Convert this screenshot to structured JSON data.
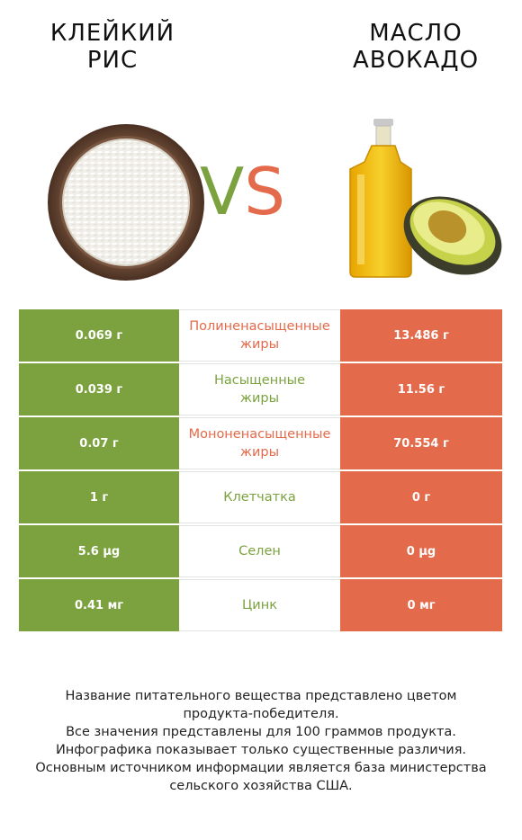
{
  "colors": {
    "green": "#7ba23f",
    "red": "#e36a4a"
  },
  "left_product": {
    "title_line1": "КЛЕЙКИЙ",
    "title_line2": "РИС",
    "image_icon": "rice-bowl-icon"
  },
  "right_product": {
    "title_line1": "МАСЛО",
    "title_line2": "АВОКАДО",
    "image_icon": "oil-bottle-avocado-icon"
  },
  "vs": {
    "v": "V",
    "s": "S"
  },
  "rows": [
    {
      "left": "0.069 г",
      "nutrient_line1": "Полиненасыщенные",
      "nutrient_line2": "жиры",
      "right": "13.486 г",
      "winner": "red"
    },
    {
      "left": "0.039 г",
      "nutrient_line1": "Насыщенные",
      "nutrient_line2": "жиры",
      "right": "11.56 г",
      "winner": "green"
    },
    {
      "left": "0.07 г",
      "nutrient_line1": "Мононенасыщенные",
      "nutrient_line2": "жиры",
      "right": "70.554 г",
      "winner": "red"
    },
    {
      "left": "1 г",
      "nutrient_line1": "Клетчатка",
      "nutrient_line2": "",
      "right": "0 г",
      "winner": "green"
    },
    {
      "left": "5.6 µg",
      "nutrient_line1": "Селен",
      "nutrient_line2": "",
      "right": "0 µg",
      "winner": "green"
    },
    {
      "left": "0.41 мг",
      "nutrient_line1": "Цинк",
      "nutrient_line2": "",
      "right": "0 мг",
      "winner": "green"
    }
  ],
  "footer": {
    "line1": "Название питательного вещества представлено цветом",
    "line2": "продукта-победителя.",
    "line3": "Все значения представлены для 100 граммов продукта.",
    "line4": "Инфографика показывает только существенные различия.",
    "line5": "Основным источником информации является база министерства",
    "line6": "сельского хозяйства США."
  }
}
